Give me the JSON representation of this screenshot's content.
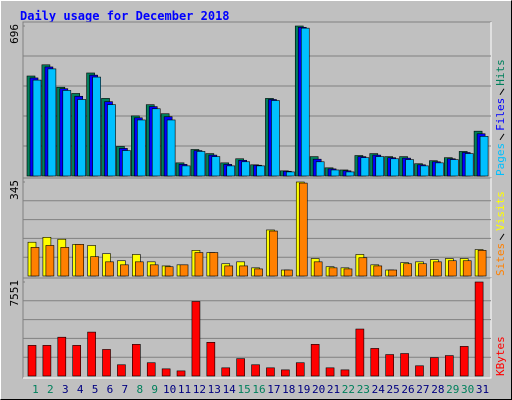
{
  "chart_data": [
    {
      "type": "bar",
      "title": "Daily usage for December 2018",
      "ylim": [
        0,
        696
      ],
      "yticks": [
        696
      ],
      "grid": true,
      "series": [
        {
          "name": "Hits",
          "color": "#00805c",
          "values": [
            464,
            516,
            412,
            383,
            478,
            360,
            137,
            279,
            331,
            289,
            61,
            123,
            104,
            61,
            80,
            52,
            360,
            24,
            696,
            90,
            38,
            28,
            95,
            104,
            90,
            90,
            57,
            71,
            85,
            114,
            208
          ]
        },
        {
          "name": "Files",
          "color": "#0000ff",
          "values": [
            455,
            506,
            405,
            370,
            468,
            345,
            128,
            270,
            322,
            275,
            54,
            118,
            97,
            54,
            73,
            50,
            355,
            22,
            690,
            78,
            33,
            24,
            90,
            97,
            85,
            83,
            52,
            66,
            80,
            109,
            196
          ]
        },
        {
          "name": "Pages",
          "color": "#00c0ff",
          "values": [
            445,
            497,
            397,
            355,
            459,
            331,
            118,
            260,
            312,
            260,
            47,
            114,
            90,
            47,
            66,
            47,
            350,
            19,
            686,
            66,
            28,
            19,
            85,
            90,
            80,
            76,
            47,
            61,
            76,
            104,
            184
          ]
        }
      ]
    },
    {
      "type": "bar",
      "ylim": [
        0,
        345
      ],
      "yticks": [
        345
      ],
      "grid": true,
      "series": [
        {
          "name": "Visits",
          "color": "#ffff00",
          "values": [
            124,
            142,
            135,
            116,
            112,
            82,
            56,
            79,
            52,
            37,
            41,
            94,
            86,
            45,
            52,
            30,
            169,
            22,
            345,
            64,
            34,
            30,
            79,
            41,
            22,
            49,
            52,
            60,
            64,
            64,
            97
          ]
        },
        {
          "name": "Sites",
          "color": "#ff8000",
          "values": [
            105,
            112,
            105,
            116,
            71,
            52,
            41,
            52,
            41,
            34,
            41,
            86,
            86,
            37,
            37,
            26,
            165,
            22,
            341,
            52,
            30,
            26,
            67,
            37,
            22,
            45,
            45,
            52,
            56,
            56,
            94
          ]
        }
      ]
    },
    {
      "type": "bar",
      "ylim": [
        0,
        7551
      ],
      "yticks": [
        7551
      ],
      "grid": true,
      "categories": [
        "1",
        "2",
        "3",
        "4",
        "5",
        "6",
        "7",
        "8",
        "9",
        "10",
        "11",
        "12",
        "13",
        "14",
        "15",
        "16",
        "17",
        "18",
        "19",
        "20",
        "21",
        "22",
        "23",
        "24",
        "25",
        "26",
        "27",
        "28",
        "29",
        "30",
        "31"
      ],
      "category_label_colors": [
        "#00805c",
        "#00805c",
        "#000080",
        "#000080",
        "#000080",
        "#000080",
        "#000080",
        "#00805c",
        "#00805c",
        "#000080",
        "#000080",
        "#000080",
        "#000080",
        "#000080",
        "#00805c",
        "#00805c",
        "#000080",
        "#000080",
        "#000080",
        "#000080",
        "#000080",
        "#00805c",
        "#00805c",
        "#000080",
        "#000080",
        "#000080",
        "#000080",
        "#000080",
        "#00805c",
        "#00805c",
        "#000080"
      ],
      "series": [
        {
          "name": "KBytes",
          "color": "#ff0000",
          "values": [
            2460,
            2460,
            3116,
            2460,
            3526,
            2132,
            902,
            2542,
            1066,
            574,
            410,
            5986,
            2706,
            656,
            1394,
            902,
            656,
            492,
            1066,
            2542,
            656,
            492,
            3772,
            2214,
            1722,
            1804,
            820,
            1476,
            1640,
            2378,
            7551
          ]
        }
      ]
    }
  ]
}
